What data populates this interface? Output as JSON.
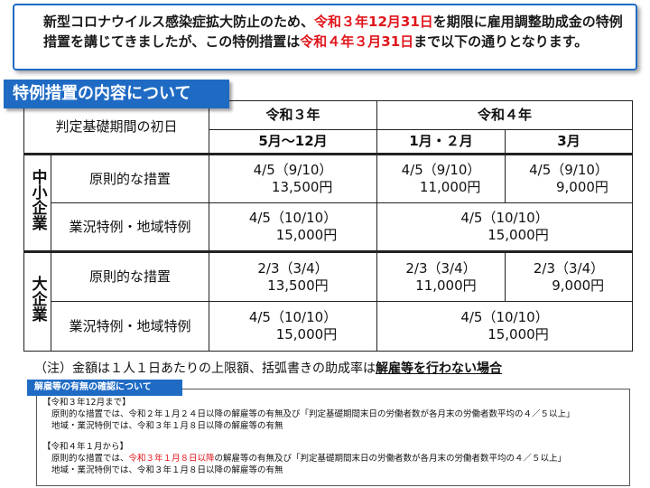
{
  "intro": {
    "p1": "新型コロナウイルス感染症拡大防止のため、",
    "r1": "令和３年12月31日",
    "p2": "を期限に雇用調整助成金の特例措置を講じてきましたが、この特例措置は",
    "r2": "令和４年３月31日",
    "p3": "まで以下の通りとなります。"
  },
  "section_title": "特例措置の内容について",
  "table": {
    "corner": "判定基礎期間の初日",
    "h_r3": "令和３年",
    "h_r4": "令和４年",
    "h_r3_sub": "5月～12月",
    "h_jan_feb": "1月・２月",
    "h_mar": "3月",
    "sme": "中小企業",
    "large": "大企業",
    "row_principle": "原則的な措置",
    "row_special": "業況特例・地域特例",
    "sme_principle": [
      {
        "rate": "4/5（9/10）",
        "amount": "13,500円"
      },
      {
        "rate": "4/5（9/10）",
        "amount": "11,000円"
      },
      {
        "rate": "4/5（9/10）",
        "amount": "9,000円"
      }
    ],
    "sme_special": [
      {
        "rate": "4/5（10/10）",
        "amount": "15,000円"
      },
      {
        "rate": "4/5（10/10）",
        "amount": "15,000円"
      }
    ],
    "large_principle": [
      {
        "rate": "2/3（3/4）",
        "amount": "13,500円"
      },
      {
        "rate": "2/3（3/4）",
        "amount": "11,000円"
      },
      {
        "rate": "2/3（3/4）",
        "amount": "9,000円"
      }
    ],
    "large_special": [
      {
        "rate": "4/5（10/10）",
        "amount": "15,000円"
      },
      {
        "rate": "4/5（10/10）",
        "amount": "15,000円"
      }
    ]
  },
  "note": {
    "text": "（注）金額は１人１日あたりの上限額、括弧書きの助成率は",
    "bold": "解雇等を行わない場合"
  },
  "box": {
    "title": "解雇等の有無の確認について",
    "s1_head": "【令和３年12月まで】",
    "s1_l1": "原則的な措置では、令和２年１月２４日以降の解雇等の有無及び「判定基礎期間末日の労働者数が各月末の労働者数平均の４／５以上」",
    "s1_l2": "地域・業況特例では、令和３年１月８日以降の解雇等の有無",
    "s2_head": "【令和４年１月から】",
    "s2_l1a": "原則的な措置では、",
    "s2_l1r": "令和３年１月８日以降",
    "s2_l1b": "の解雇等の有無及び「判定基礎期間末日の労働者数が各月末の労働者数平均の４／５以上」",
    "s2_l2": "地域・業況特例では、令和３年１月８日以降の解雇等の有無"
  }
}
